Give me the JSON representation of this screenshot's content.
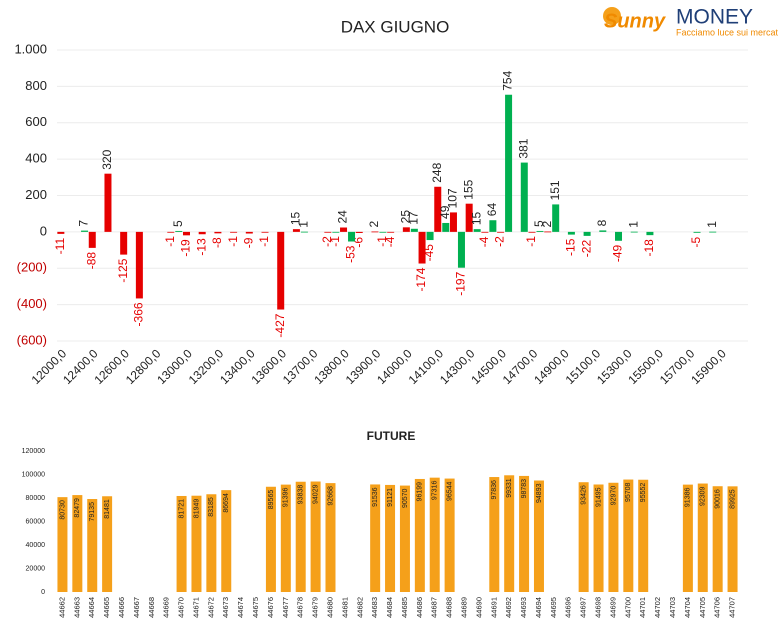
{
  "logo": {
    "brand_a": "Sunny",
    "brand_b": "MONEY",
    "tagline": "Facciamo luce sui mercati"
  },
  "chart_data": [
    {
      "type": "bar",
      "title": "DAX GIUGNO",
      "categories": [
        "12000,0",
        null,
        "12400,0",
        null,
        "12600,0",
        null,
        "12800,0",
        null,
        "13000,0",
        null,
        "13200,0",
        null,
        "13400,0",
        null,
        "13600,0",
        null,
        "13700,0",
        null,
        "13800,0",
        null,
        "13900,0",
        null,
        "14000,0",
        null,
        "14100,0",
        null,
        "14300,0",
        null,
        "14500,0",
        null,
        "14700,0",
        null,
        "14900,0",
        null,
        "15100,0",
        null,
        "15300,0",
        null,
        "15500,0",
        null,
        "15700,0",
        null,
        "15900,0",
        null
      ],
      "series": [
        {
          "color": "#e60000",
          "values": [
            -11,
            null,
            -88,
            320,
            -125,
            -366,
            null,
            -1,
            -19,
            -13,
            -8,
            -1,
            -9,
            -1,
            -427,
            15,
            null,
            -2,
            24,
            -6,
            2,
            -4,
            25,
            -174,
            248,
            107,
            155,
            -4,
            -2,
            null,
            -1,
            2,
            null,
            null,
            null,
            null,
            null,
            null,
            null,
            null,
            null,
            null,
            null,
            null
          ]
        },
        {
          "color": "#00b050",
          "values": [
            null,
            7,
            null,
            null,
            null,
            null,
            null,
            5,
            null,
            null,
            null,
            null,
            null,
            null,
            null,
            1,
            null,
            -1,
            -53,
            null,
            -1,
            null,
            17,
            -45,
            49,
            -197,
            15,
            64,
            754,
            381,
            5,
            151,
            -15,
            -22,
            8,
            -49,
            1,
            -18,
            null,
            null,
            -5,
            1,
            null,
            null
          ]
        }
      ],
      "ylim": [
        -600,
        1000
      ],
      "yticks": [
        {
          "value": 1000,
          "label": "1.000"
        },
        800,
        600,
        400,
        200,
        0,
        {
          "value": -200,
          "label": "(200)"
        },
        {
          "value": -400,
          "label": "(400)"
        },
        {
          "value": -600,
          "label": "(600)"
        }
      ],
      "grid": true
    },
    {
      "type": "bar",
      "title": "FUTURE",
      "categories": [
        "44662",
        "44663",
        "44664",
        "44665",
        "44666",
        "44667",
        "44668",
        "44669",
        "44670",
        "44671",
        "44672",
        "44673",
        "44674",
        "44675",
        "44676",
        "44677",
        "44678",
        "44679",
        "44680",
        "44681",
        "44682",
        "44683",
        "44684",
        "44685",
        "44686",
        "44687",
        "44688",
        "44689",
        "44690",
        "44691",
        "44692",
        "44693",
        "44694",
        "44695",
        "44696",
        "44697",
        "44698",
        "44699",
        "44700",
        "44701",
        "44702",
        "44703",
        "44704",
        "44705",
        "44706",
        "44707"
      ],
      "values": [
        80730,
        82479,
        79135,
        81481,
        null,
        null,
        null,
        null,
        81721,
        81949,
        83185,
        86694,
        null,
        null,
        89565,
        91396,
        93838,
        94029,
        92668,
        null,
        null,
        91536,
        91121,
        90570,
        96199,
        97316,
        96544,
        null,
        null,
        97836,
        99331,
        98783,
        94893,
        null,
        null,
        93426,
        91495,
        92970,
        95708,
        95552,
        null,
        null,
        91386,
        92309,
        90016,
        89925
      ],
      "color": "#f5a01a",
      "ylim": [
        0,
        120000
      ],
      "yticks": [
        0,
        20000,
        40000,
        60000,
        80000,
        100000,
        120000
      ],
      "grid": false
    }
  ]
}
